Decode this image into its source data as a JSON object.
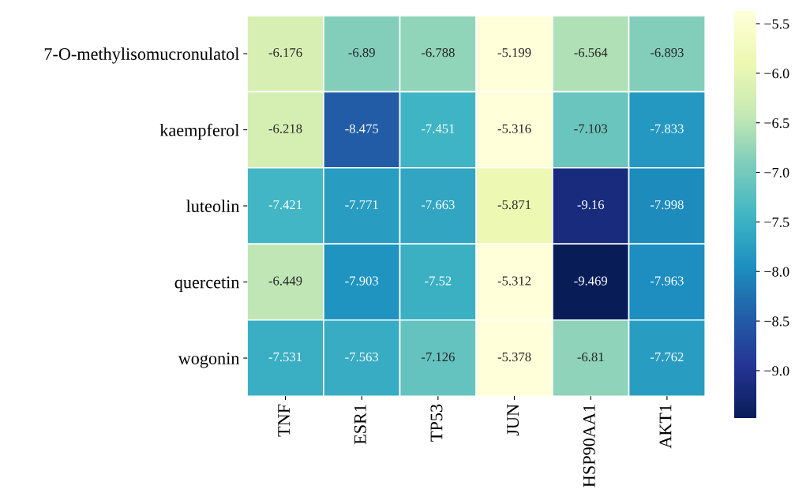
{
  "chart_data": {
    "type": "heatmap",
    "categories": [
      "TNF",
      "ESR1",
      "TP53",
      "JUN",
      "HSP90AA1",
      "AKT1"
    ],
    "y_categories": [
      "7-O-methylisomucronulatol",
      "kaempferol",
      "luteolin",
      "quercetin",
      "wogonin"
    ],
    "cells": [
      [
        -6.176,
        -6.89,
        -6.788,
        -5.199,
        -6.564,
        -6.893
      ],
      [
        -6.218,
        -8.475,
        -7.451,
        -5.316,
        -7.103,
        -7.833
      ],
      [
        -7.421,
        -7.771,
        -7.663,
        -5.871,
        -9.16,
        -7.998
      ],
      [
        -6.449,
        -7.903,
        -7.52,
        -5.312,
        -9.469,
        -7.963
      ],
      [
        -7.531,
        -7.563,
        -7.126,
        -5.378,
        -6.81,
        -7.762
      ]
    ],
    "clim": [
      -9.476,
      -5.373
    ],
    "cticks": [
      {
        "value": -5.5,
        "label": "−5.5"
      },
      {
        "value": -6.0,
        "label": "−6.0"
      },
      {
        "value": -6.5,
        "label": "−6.5"
      },
      {
        "value": -7.0,
        "label": "−7.0"
      },
      {
        "value": -7.5,
        "label": "−7.5"
      },
      {
        "value": -8.0,
        "label": "−8.0"
      },
      {
        "value": -8.5,
        "label": "−8.5"
      },
      {
        "value": -9.0,
        "label": "−9.0"
      }
    ],
    "data_labels": true
  }
}
